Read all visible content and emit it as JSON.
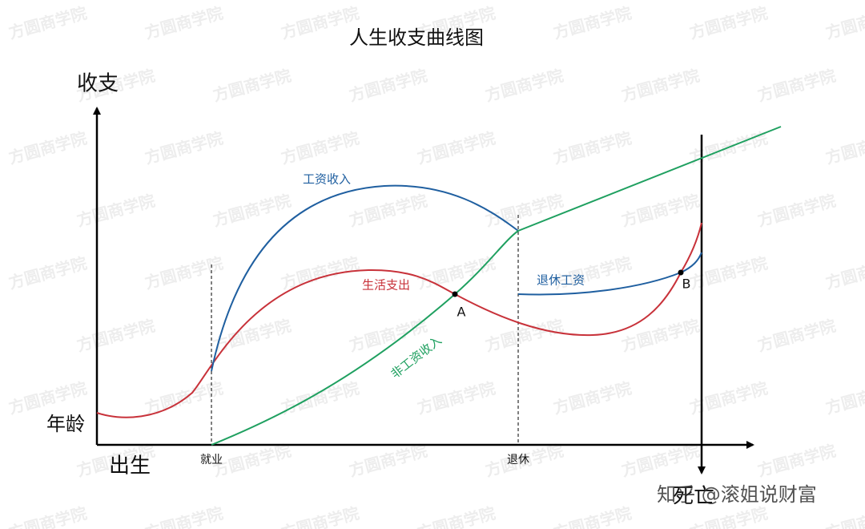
{
  "title": "人生收支曲线图",
  "axes": {
    "y_label": "收支",
    "x_label": "年龄",
    "origin_label": "出生"
  },
  "milestones": {
    "employment": "就业",
    "retirement": "退休",
    "death": "死亡"
  },
  "curves": {
    "wage_income": "工资收入",
    "living_expense": "生活支出",
    "retirement_wage": "退休工资",
    "non_wage_income": "非工资收入"
  },
  "points": {
    "a": "A",
    "b": "B"
  },
  "watermark": "方圆商学院",
  "credit": "知乎 @滚姐说财富"
}
